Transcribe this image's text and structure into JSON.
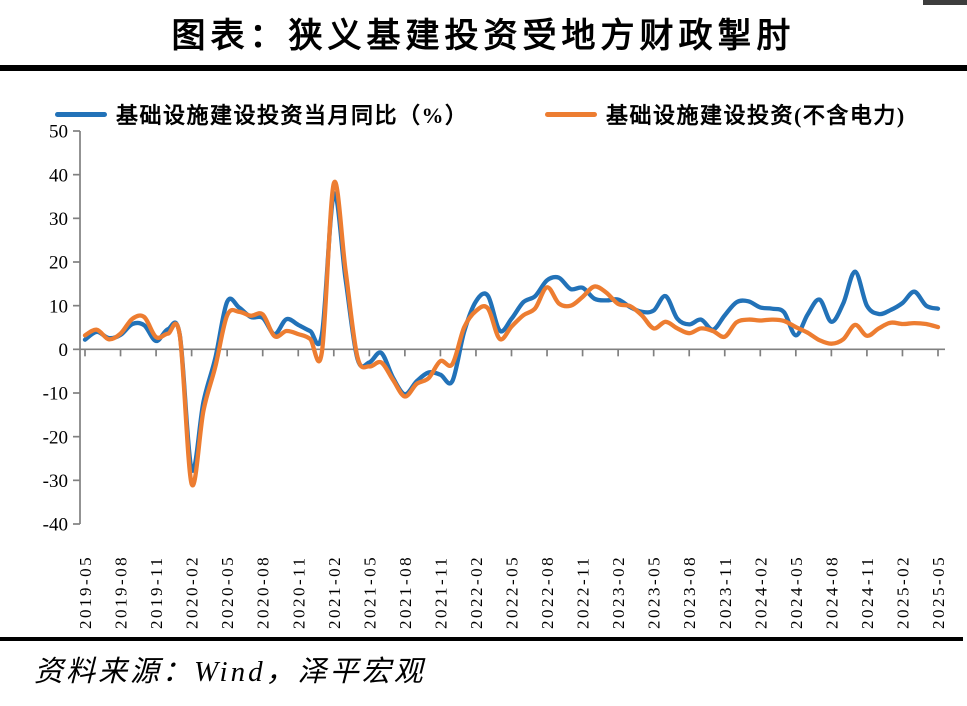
{
  "header": {
    "title": "图表：狭义基建投资受地方财政掣肘"
  },
  "footer": {
    "source": "资料来源：Wind，泽平宏观"
  },
  "chart_data": {
    "type": "line",
    "smooth": true,
    "grid": false,
    "legend_position": "top",
    "title": "图表：狭义基建投资受地方财政掣肘",
    "xlabel": "",
    "ylabel": "",
    "ylim": [
      -40,
      50
    ],
    "y_ticks": [
      50,
      40,
      30,
      20,
      10,
      0,
      -10,
      -20,
      -30,
      -40
    ],
    "axis_color": "#808080",
    "x_tick_every": 3,
    "x": [
      "2019-05",
      "2019-06",
      "2019-07",
      "2019-08",
      "2019-09",
      "2019-10",
      "2019-11",
      "2019-12",
      "2020-01",
      "2020-02",
      "2020-03",
      "2020-04",
      "2020-05",
      "2020-06",
      "2020-07",
      "2020-08",
      "2020-09",
      "2020-10",
      "2020-11",
      "2020-12",
      "2021-01",
      "2021-02",
      "2021-03",
      "2021-04",
      "2021-05",
      "2021-06",
      "2021-07",
      "2021-08",
      "2021-09",
      "2021-10",
      "2021-11",
      "2021-12",
      "2022-01",
      "2022-02",
      "2022-03",
      "2022-04",
      "2022-05",
      "2022-06",
      "2022-07",
      "2022-08",
      "2022-09",
      "2022-10",
      "2022-11",
      "2022-12",
      "2023-01",
      "2023-02",
      "2023-03",
      "2023-04",
      "2023-05",
      "2023-06",
      "2023-07",
      "2023-08",
      "2023-09",
      "2023-10",
      "2023-11",
      "2023-12",
      "2024-01",
      "2024-02",
      "2024-03",
      "2024-04",
      "2024-05",
      "2024-06",
      "2024-07",
      "2024-08",
      "2024-09",
      "2024-10",
      "2024-11",
      "2024-12",
      "2025-01",
      "2025-02",
      "2025-03",
      "2025-04",
      "2025-05"
    ],
    "series": [
      {
        "name": "基础设施建设投资当月同比（%）",
        "color": "#2272B8",
        "values": [
          2.2,
          4.0,
          2.6,
          3.3,
          5.8,
          5.5,
          1.9,
          4.6,
          3.3,
          -27.5,
          -12.0,
          -2.0,
          10.9,
          9.6,
          7.4,
          7.2,
          3.5,
          6.9,
          5.6,
          4.2,
          3.4,
          35.5,
          16.0,
          -2.2,
          -3.0,
          -0.8,
          -6.5,
          -10.3,
          -7.3,
          -5.3,
          -5.8,
          -7.3,
          4.0,
          11.0,
          12.3,
          4.3,
          7.0,
          10.8,
          12.2,
          15.8,
          16.4,
          13.8,
          14.1,
          11.6,
          11.2,
          11.4,
          9.7,
          8.6,
          8.9,
          12.2,
          7.0,
          5.7,
          6.8,
          4.5,
          7.8,
          10.8,
          11.0,
          9.6,
          9.3,
          8.5,
          3.2,
          8.0,
          11.4,
          6.3,
          10.5,
          17.8,
          10.0,
          8.1,
          9.0,
          10.6,
          13.2,
          10.0,
          9.3
        ]
      },
      {
        "name": "基础设施建设投资(不含电力)",
        "color": "#ED7D31",
        "values": [
          3.2,
          4.5,
          2.3,
          3.6,
          7.0,
          7.4,
          2.8,
          3.6,
          3.2,
          -30.8,
          -14.0,
          -4.0,
          7.8,
          8.6,
          7.7,
          8.0,
          3.0,
          4.2,
          3.5,
          2.4,
          -0.6,
          38.0,
          18.0,
          -1.8,
          -3.9,
          -3.0,
          -7.0,
          -10.8,
          -7.9,
          -6.6,
          -2.7,
          -3.4,
          5.0,
          8.8,
          9.4,
          2.4,
          5.2,
          7.8,
          9.4,
          14.2,
          10.5,
          10.0,
          12.0,
          14.4,
          13.0,
          10.4,
          9.9,
          7.8,
          4.8,
          6.3,
          4.8,
          3.7,
          4.8,
          4.2,
          2.9,
          6.2,
          6.8,
          6.6,
          6.8,
          6.5,
          5.1,
          3.8,
          2.1,
          1.3,
          2.3,
          5.6,
          3.1,
          4.8,
          6.1,
          5.8,
          6.0,
          5.8,
          5.1
        ]
      }
    ]
  }
}
